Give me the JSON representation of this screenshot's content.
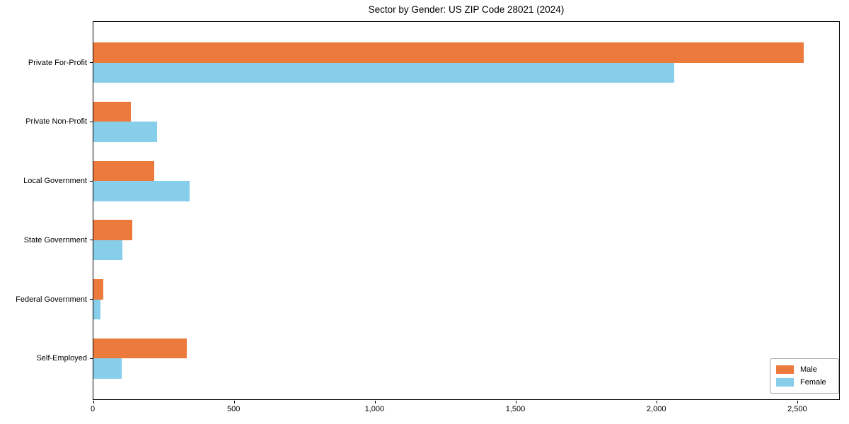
{
  "chart_data": {
    "type": "bar",
    "orientation": "horizontal",
    "title": "Sector by Gender: US ZIP Code 28021 (2024)",
    "categories": [
      "Private For-Profit",
      "Private Non-Profit",
      "Local Government",
      "State Government",
      "Federal Government",
      "Self-Employed"
    ],
    "series": [
      {
        "name": "Male",
        "color": "#ec7a3c",
        "values": [
          2520,
          132,
          216,
          137,
          36,
          332
        ]
      },
      {
        "name": "Female",
        "color": "#87ceeb",
        "values": [
          2060,
          226,
          342,
          103,
          25,
          101
        ]
      }
    ],
    "xlabel": "",
    "ylabel": "",
    "xlim": [
      0,
      2646
    ],
    "xticks": {
      "values": [
        0,
        500,
        1000,
        1500,
        2000,
        2500
      ],
      "labels": [
        "0",
        "500",
        "1,000",
        "1,500",
        "2,000",
        "2,500"
      ]
    },
    "grid": false,
    "legend_position": "lower right",
    "legend_entries": [
      "Male",
      "Female"
    ]
  },
  "colors": {
    "axis": "#000000",
    "text": "#000000",
    "legend_border": "#a8a8a8",
    "background": "#ffffff",
    "male": "#ec7a3c",
    "female": "#87ceeb"
  }
}
